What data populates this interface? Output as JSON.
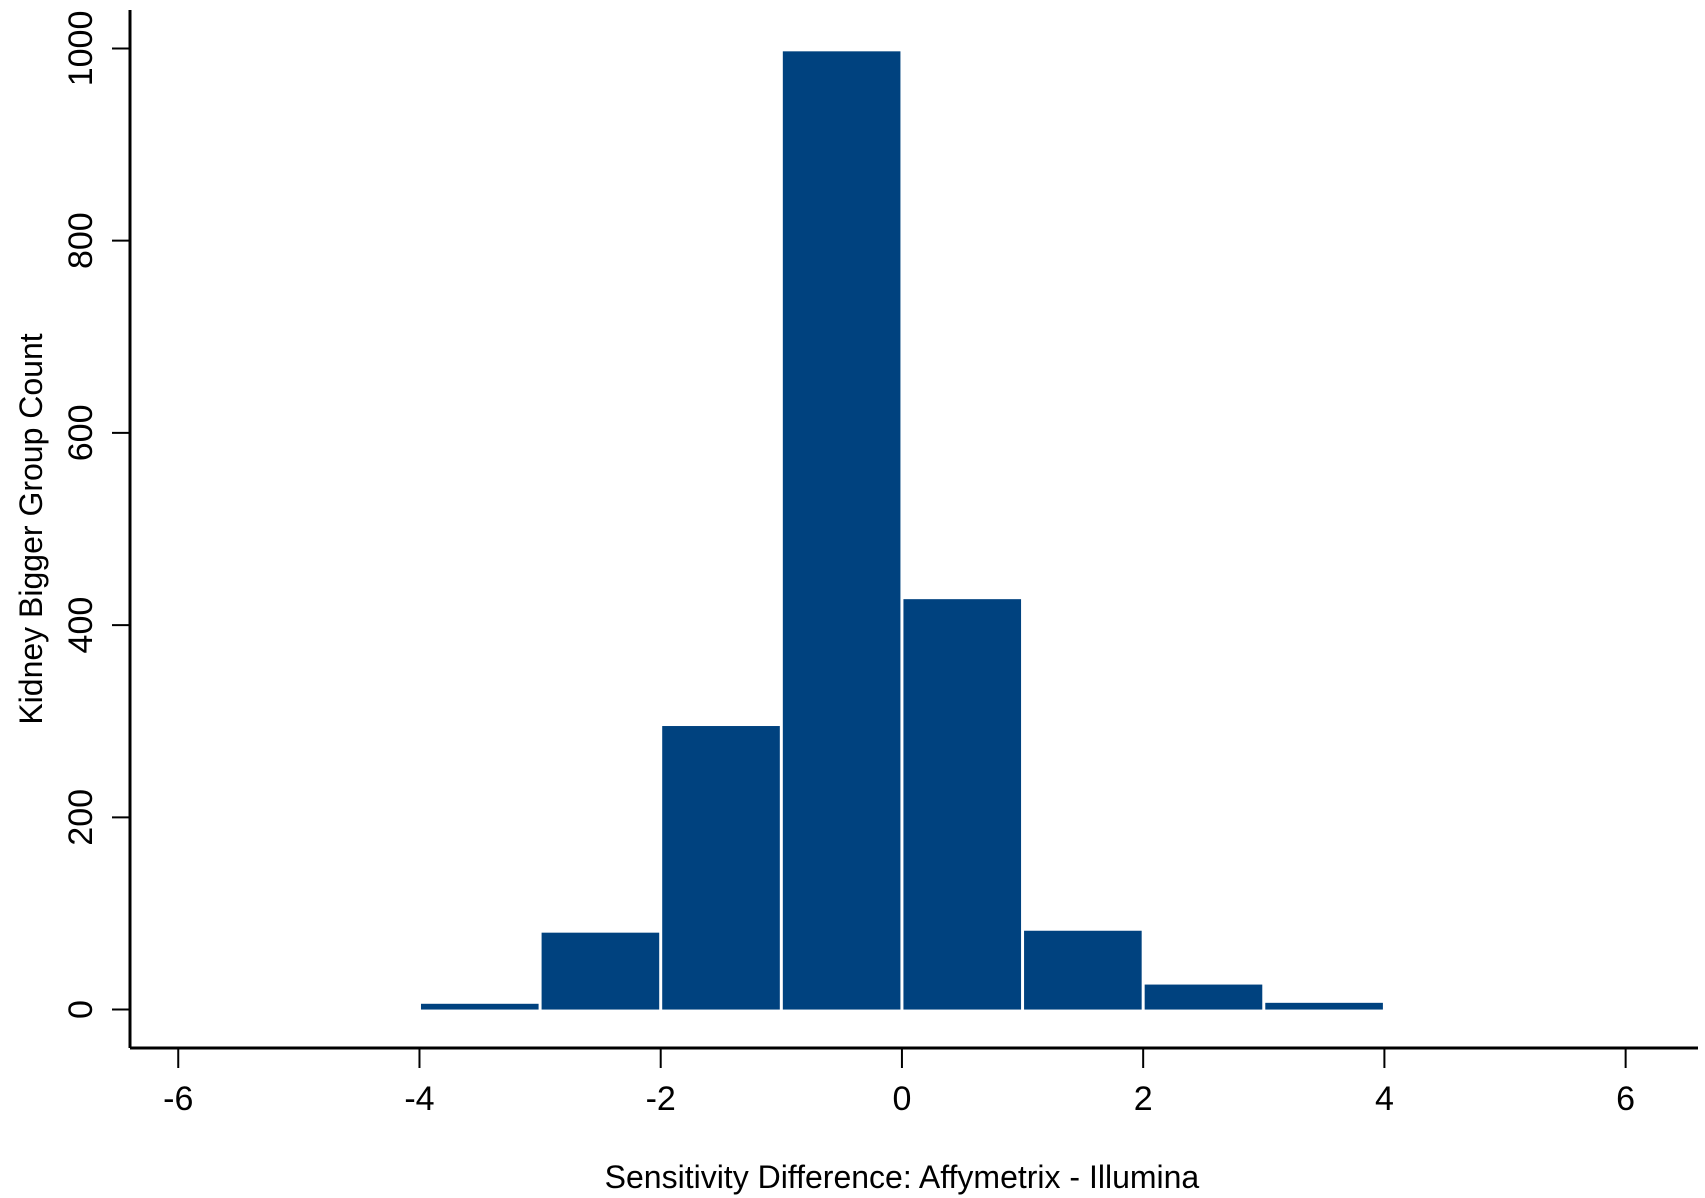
{
  "chart_data": {
    "type": "bar",
    "title": "",
    "xlabel": "Sensitivity Difference: Affymetrix - Illumina",
    "ylabel": "Kidney Bigger Group Count",
    "xlim": [
      -6.4,
      6.6
    ],
    "ylim": [
      -40,
      1040
    ],
    "xticks": [
      -6,
      -4,
      -2,
      0,
      2,
      4,
      6
    ],
    "xtick_labels": [
      "-6",
      "-4",
      "-2",
      "0",
      "2",
      "4",
      "6"
    ],
    "yticks": [
      0,
      200,
      400,
      600,
      800,
      1000
    ],
    "ytick_labels": [
      "0",
      "200",
      "400",
      "600",
      "800",
      "1000"
    ],
    "bin_edges": [
      -4,
      -3,
      -2,
      -1,
      0,
      1,
      2,
      3,
      4
    ],
    "values": [
      6,
      80,
      295,
      997,
      427,
      82,
      26,
      7
    ],
    "bar_color": "#00427f",
    "grid": false,
    "legend": "none"
  }
}
